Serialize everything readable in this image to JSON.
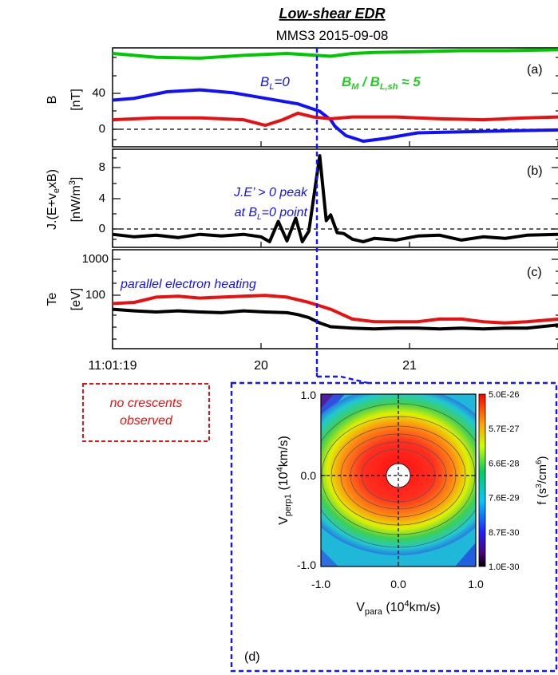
{
  "header": {
    "title": "Low-shear EDR",
    "subtitle": "MMS3 2015-09-08"
  },
  "panels": {
    "a": {
      "label": "(a)",
      "ylabel_name": "B",
      "ylabel_unit": "[nT]",
      "annotation_bl": "BL=0",
      "annotation_ratio": "BM / BL,sh ≈ 5"
    },
    "b": {
      "label": "(b)",
      "ylabel_name": "J.(E+v",
      "ylabel_sub": "e",
      "ylabel_tail": "xB)",
      "ylabel_unit": "[nW/m",
      "ylabel_unit_sup": "3",
      "ylabel_unit_close": "]",
      "annotation_line1": "J.E’ > 0 peak",
      "annotation_line2": "at BL=0 point"
    },
    "c": {
      "label": "(c)",
      "ylabel_name": "Te",
      "ylabel_unit": "[eV]",
      "annotation": "parallel electron heating"
    },
    "d": {
      "label": "(d)",
      "xlabel": "Vpara (10⁴km/s)",
      "ylabel": "Vperp1 (10⁴km/s)",
      "cbar_label": "f (s³/cm⁶)",
      "cbar_ticks": [
        "5.0E-26",
        "5.7E-27",
        "6.6E-28",
        "7.6E-29",
        "8.7E-30",
        "1.0E-30"
      ]
    }
  },
  "callout": {
    "line1": "no crescents",
    "line2": "observed"
  },
  "chart_data": [
    {
      "type": "line",
      "panel": "a",
      "x_unit": "seconds after 11:01:19",
      "xlim": [
        0,
        2.05
      ],
      "ylim": [
        -28,
        78
      ],
      "yticks": [
        0,
        40
      ],
      "series": [
        {
          "color": "#00c800",
          "x": [
            0,
            0.2,
            0.4,
            0.6,
            0.8,
            1.0,
            1.1,
            1.2,
            1.4,
            1.6,
            1.8,
            2.05
          ],
          "y": [
            72,
            68,
            67,
            70,
            72,
            69,
            72,
            73,
            74,
            75,
            75,
            76
          ]
        },
        {
          "color": "#1010ff",
          "x": [
            0,
            0.1,
            0.25,
            0.4,
            0.55,
            0.7,
            0.85,
            0.95,
            1.0,
            1.02,
            1.07,
            1.15,
            1.25,
            1.4,
            1.6,
            1.8,
            2.05
          ],
          "y": [
            22,
            24,
            31,
            33,
            30,
            24,
            18,
            10,
            1,
            -6,
            -16,
            -22,
            -19,
            -13,
            -12,
            -11,
            -10
          ]
        },
        {
          "color": "#e81010",
          "x": [
            0,
            0.2,
            0.4,
            0.6,
            0.7,
            0.78,
            0.85,
            0.92,
            1.0,
            1.1,
            1.3,
            1.5,
            1.7,
            1.9,
            2.05
          ],
          "y": [
            1,
            3,
            3,
            1,
            -5,
            1,
            8,
            4,
            2,
            4,
            4,
            2,
            1,
            3,
            4
          ]
        }
      ]
    },
    {
      "type": "line",
      "panel": "b",
      "x_unit": "seconds after 11:01:19",
      "xlim": [
        0,
        2.05
      ],
      "ylim": [
        -1.8,
        10.3
      ],
      "yticks": [
        0,
        4,
        8
      ],
      "series": [
        {
          "color": "#000000",
          "x": [
            0,
            0.1,
            0.2,
            0.3,
            0.4,
            0.5,
            0.6,
            0.68,
            0.72,
            0.76,
            0.8,
            0.84,
            0.87,
            0.9,
            0.95,
            0.98,
            1.0,
            1.03,
            1.06,
            1.1,
            1.15,
            1.2,
            1.3,
            1.4,
            1.5,
            1.6,
            1.7,
            1.8,
            1.9,
            2.05
          ],
          "y": [
            -0.2,
            -0.5,
            -0.3,
            -0.6,
            -0.2,
            -0.4,
            -0.2,
            -0.5,
            -1.1,
            1.4,
            -1.0,
            1.8,
            -1.1,
            0.2,
            9.5,
            1.5,
            2.2,
            0.0,
            -0.1,
            -0.8,
            -1.1,
            -0.7,
            -0.9,
            -0.4,
            -0.3,
            -0.9,
            -0.5,
            -0.7,
            -0.3,
            -0.2
          ]
        }
      ]
    },
    {
      "type": "line",
      "panel": "c",
      "x_unit": "seconds after 11:01:19",
      "y_scale": "log",
      "xlim": [
        0,
        2.05
      ],
      "ylim": [
        12,
        1000
      ],
      "yticks": [
        100,
        1000
      ],
      "series": [
        {
          "color": "#e81010",
          "x": [
            0,
            0.1,
            0.2,
            0.3,
            0.4,
            0.5,
            0.6,
            0.7,
            0.8,
            0.9,
            1.0,
            1.1,
            1.2,
            1.3,
            1.4,
            1.5,
            1.6,
            1.7,
            1.8,
            1.9,
            2.05
          ],
          "y": [
            90,
            95,
            120,
            125,
            115,
            120,
            125,
            130,
            120,
            95,
            70,
            45,
            40,
            40,
            40,
            45,
            45,
            40,
            38,
            40,
            45
          ]
        },
        {
          "color": "#000000",
          "x": [
            0,
            0.1,
            0.2,
            0.3,
            0.4,
            0.5,
            0.6,
            0.7,
            0.8,
            0.85,
            0.9,
            0.95,
            1.0,
            1.1,
            1.2,
            1.3,
            1.4,
            1.5,
            1.6,
            1.7,
            1.8,
            1.9,
            2.05
          ],
          "y": [
            70,
            65,
            62,
            65,
            62,
            60,
            65,
            62,
            60,
            55,
            48,
            38,
            32,
            30,
            29,
            30,
            30,
            29,
            30,
            29,
            30,
            30,
            35
          ]
        }
      ]
    },
    {
      "type": "heatmap",
      "panel": "d",
      "xlabel": "Vpara (10⁴km/s)",
      "ylabel": "Vperp1 (10⁴km/s)",
      "xlim": [
        -1.0,
        1.0
      ],
      "ylim": [
        -1.0,
        1.0
      ],
      "xticks": [
        -1.0,
        0.0,
        1.0
      ],
      "yticks": [
        -1.0,
        0.0,
        1.0
      ],
      "colorbar": "rainbow (black-purple-blue-cyan-green-yellow-red)",
      "colorbar_range": [
        1e-30,
        5e-26
      ],
      "colorbar_ticks": [
        "5.0E-26",
        "5.7E-27",
        "6.6E-28",
        "7.6E-29",
        "8.7E-30",
        "1.0E-30"
      ],
      "note": "anisotropic distribution elongated along Vpara, peak near origin"
    }
  ],
  "x_axis": {
    "ticks": [
      "11:01:19",
      "20",
      "21"
    ]
  }
}
